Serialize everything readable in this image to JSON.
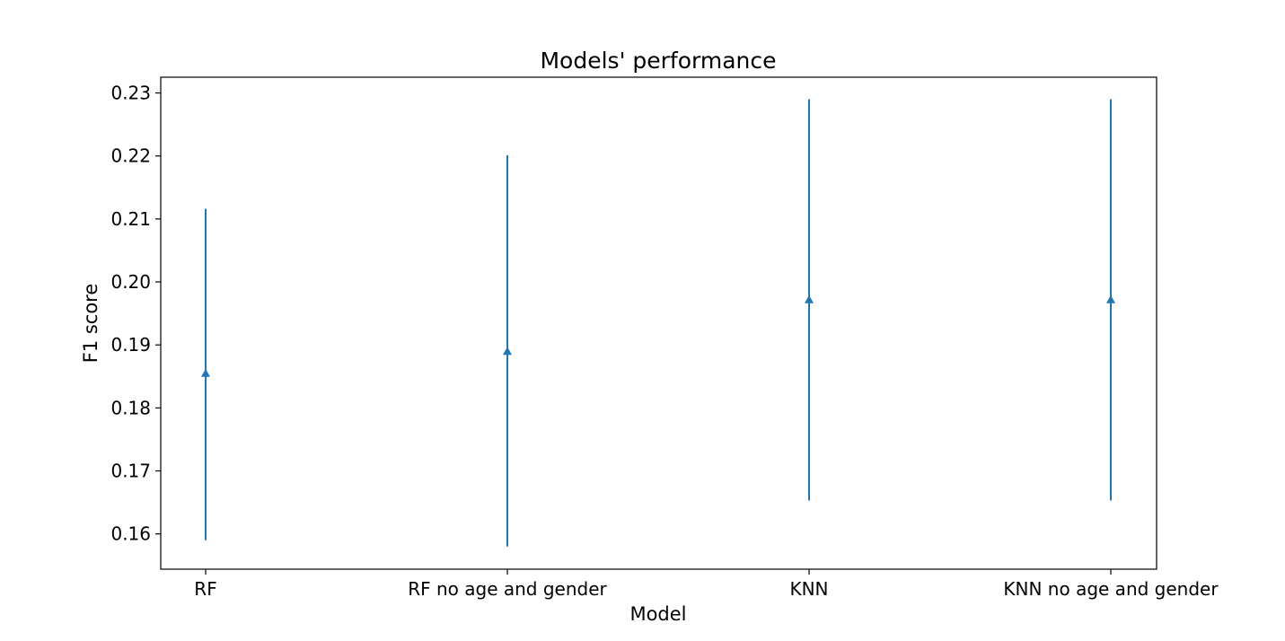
{
  "chart_data": {
    "type": "scatter",
    "title": "Models' performance",
    "xlabel": "Model",
    "ylabel": "F1 score",
    "categories": [
      "RF",
      "RF no age and gender",
      "KNN",
      "KNN no age and gender"
    ],
    "values": [
      0.1855,
      0.189,
      0.1972,
      0.1972
    ],
    "error_low": [
      0.159,
      0.158,
      0.1653,
      0.1653
    ],
    "error_high": [
      0.2116,
      0.2201,
      0.229,
      0.229
    ],
    "ylim": [
      0.1544,
      0.2325
    ],
    "yticks": [
      "0.16",
      "0.17",
      "0.18",
      "0.19",
      "0.20",
      "0.21",
      "0.22",
      "0.23"
    ],
    "ytick_values": [
      0.16,
      0.17,
      0.18,
      0.19,
      0.2,
      0.21,
      0.22,
      0.23
    ],
    "marker": "triangle-up",
    "color": "#1f77b4",
    "grid": false,
    "legend": "none"
  }
}
